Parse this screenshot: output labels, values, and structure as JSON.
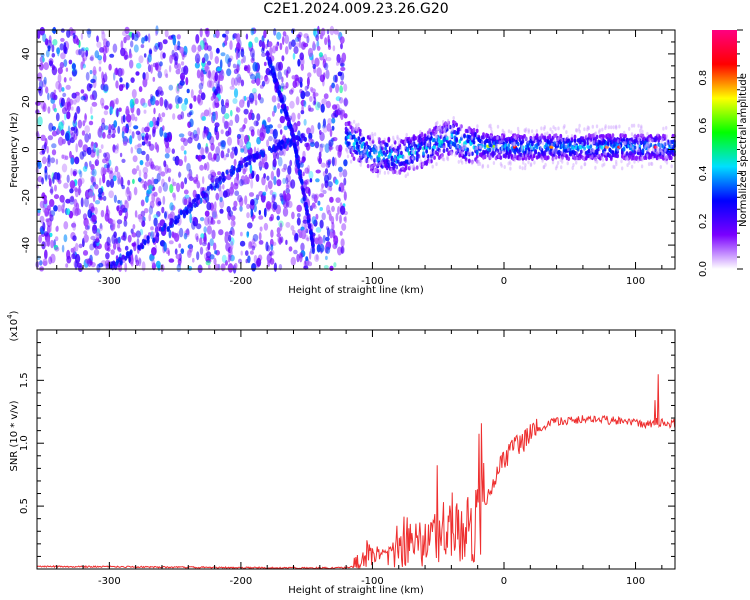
{
  "title": "C2E1.2024.009.23.26.G20",
  "chart_data": [
    {
      "type": "heatmap",
      "title": "",
      "xlabel": "Height of straight line (km)",
      "ylabel": "Frequency (Hz)",
      "xlim": [
        -355,
        130
      ],
      "ylim": [
        -50,
        50
      ],
      "x_ticks": [
        -300,
        -200,
        -100,
        0,
        100
      ],
      "y_ticks": [
        -40,
        -20,
        0,
        20,
        40
      ],
      "colorbar": {
        "label": "Normalized spectral amplitude",
        "range": [
          0,
          1
        ],
        "ticks": [
          0.0,
          0.2,
          0.4,
          0.6,
          0.8
        ],
        "colors": [
          "#ffffff",
          "#7a00ff",
          "#0000ff",
          "#00dfff",
          "#00ff00",
          "#ffff00",
          "#ff0000",
          "#ff0080"
        ]
      },
      "regions": [
        {
          "name": "broadband noise",
          "x_range": [
            -355,
            -120
          ],
          "freq_range": [
            -50,
            50
          ],
          "amplitude": 0.1
        },
        {
          "name": "signal band",
          "x_range": [
            -120,
            130
          ],
          "center_freq": 0,
          "half_width_hz": 5,
          "amplitude": 0.35
        }
      ],
      "features": [
        {
          "name": "rising track",
          "points": [
            [
              -300,
              -50
            ],
            [
              -250,
              -30
            ],
            [
              -210,
              -10
            ],
            [
              -180,
              0
            ],
            [
              -150,
              5
            ]
          ]
        },
        {
          "name": "steep track",
          "points": [
            [
              -180,
              40
            ],
            [
              -160,
              5
            ],
            [
              -145,
              -40
            ]
          ]
        },
        {
          "name": "signal center",
          "points": [
            [
              -120,
              5
            ],
            [
              -100,
              -2
            ],
            [
              -80,
              -3
            ],
            [
              -60,
              0
            ],
            [
              -50,
              3
            ],
            [
              -40,
              5
            ],
            [
              -30,
              2
            ],
            [
              0,
              1
            ],
            [
              130,
              1
            ]
          ]
        }
      ]
    },
    {
      "type": "line",
      "title": "",
      "xlabel": "Height of straight line (km)",
      "ylabel": "SNR (10 * v/v)",
      "y_multiplier": "(x10",
      "y_multiplier_exp": "4",
      "y_multiplier_end": ")",
      "xlim": [
        -355,
        130
      ],
      "ylim": [
        0,
        19000
      ],
      "x_ticks": [
        -300,
        -200,
        -100,
        0,
        100
      ],
      "y_ticks": [
        {
          "value": 5000,
          "label": "0.5"
        },
        {
          "value": 10000,
          "label": "1.0"
        },
        {
          "value": 15000,
          "label": "1.5"
        }
      ],
      "series": [
        {
          "color": "#ee2f2f",
          "x": [
            -355,
            -300,
            -250,
            -200,
            -150,
            -120,
            -110,
            -105,
            -100,
            -95,
            -90,
            -80,
            -70,
            -60,
            -50,
            -40,
            -35,
            -30,
            -25,
            -20,
            -15,
            -12,
            -10,
            -5,
            0,
            5,
            10,
            15,
            20,
            25,
            30,
            40,
            50,
            60,
            70,
            80,
            90,
            100,
            110,
            115,
            120,
            125,
            130
          ],
          "values": [
            200,
            180,
            150,
            100,
            80,
            100,
            400,
            1200,
            1500,
            800,
            900,
            1300,
            1900,
            2000,
            2700,
            3100,
            3000,
            3300,
            3300,
            3600,
            5000,
            5500,
            6500,
            8000,
            8700,
            9300,
            9800,
            10200,
            10900,
            11100,
            11400,
            11700,
            11800,
            11900,
            12000,
            11800,
            11700,
            11600,
            11500,
            11700,
            11600,
            11500,
            11600
          ]
        }
      ]
    }
  ]
}
